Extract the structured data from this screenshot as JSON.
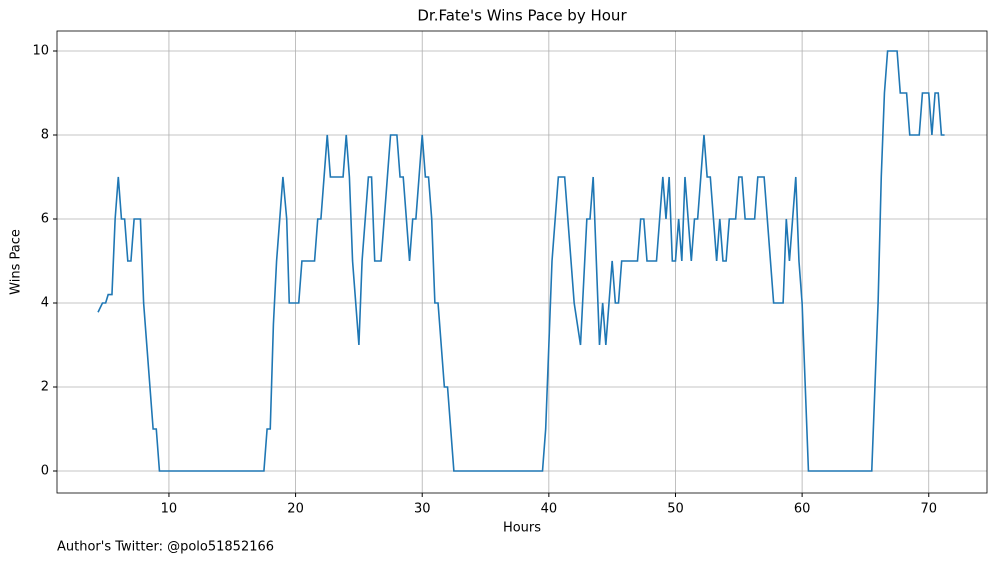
{
  "chart_data": {
    "type": "line",
    "title": "Dr.Fate's Wins Pace by Hour",
    "xlabel": "Hours",
    "ylabel": "Wins Pace",
    "note": "Author's Twitter: @polo51852166",
    "x": [
      4.4,
      4.75,
      5.0,
      5.2,
      5.5,
      5.75,
      6.0,
      6.25,
      6.5,
      6.75,
      7.0,
      7.25,
      7.75,
      8.0,
      8.25,
      8.5,
      8.75,
      9.0,
      9.25,
      17.5,
      17.75,
      18.0,
      18.25,
      18.5,
      19.0,
      19.3,
      19.5,
      20.25,
      20.5,
      21.5,
      21.75,
      22.0,
      22.5,
      22.75,
      23.75,
      24.0,
      24.25,
      24.5,
      25.0,
      25.25,
      25.5,
      25.75,
      26.0,
      26.25,
      26.75,
      27.0,
      27.25,
      27.5,
      28.0,
      28.25,
      28.5,
      29.0,
      29.25,
      29.5,
      29.75,
      30.0,
      30.25,
      30.5,
      30.75,
      31.0,
      31.25,
      31.75,
      32.0,
      32.25,
      32.5,
      39.5,
      39.75,
      40.0,
      40.25,
      40.75,
      41.25,
      41.5,
      41.75,
      42.0,
      42.5,
      42.75,
      43.0,
      43.25,
      43.5,
      43.75,
      44.0,
      44.25,
      44.5,
      44.75,
      45.0,
      45.25,
      45.5,
      45.75,
      47.0,
      47.25,
      47.5,
      47.75,
      48.5,
      48.75,
      49.0,
      49.25,
      49.5,
      49.75,
      50.0,
      50.25,
      50.5,
      50.75,
      51.0,
      51.25,
      51.5,
      51.75,
      52.0,
      52.25,
      52.5,
      52.75,
      53.0,
      53.25,
      53.5,
      53.75,
      54.0,
      54.25,
      54.75,
      55.0,
      55.25,
      55.5,
      56.25,
      56.5,
      57.0,
      57.25,
      57.5,
      57.75,
      58.5,
      58.75,
      59.0,
      59.25,
      59.5,
      59.75,
      60.0,
      60.25,
      60.5,
      65.5,
      65.75,
      66.0,
      66.25,
      66.5,
      66.75,
      67.5,
      67.75,
      68.25,
      68.5,
      69.25,
      69.5,
      70.0,
      70.25,
      70.5,
      70.75,
      71.0,
      71.25
    ],
    "series": [
      {
        "name": "Wins Pace",
        "color": "#1f77b4",
        "values": [
          3.78,
          4.0,
          4.0,
          4.2,
          4.2,
          6,
          7,
          6,
          6,
          5,
          5,
          6,
          6,
          4,
          3,
          2,
          1,
          1,
          0,
          0,
          1,
          1,
          3.5,
          5,
          7,
          6,
          4,
          4,
          5,
          5,
          6,
          6,
          8,
          7,
          7,
          8,
          7,
          5,
          3,
          5,
          6,
          7,
          7,
          5,
          5,
          6,
          7,
          8,
          8,
          7,
          7,
          5,
          6,
          6,
          7,
          8,
          7,
          7,
          6,
          4,
          4,
          2,
          2,
          1,
          0,
          0,
          1,
          3,
          5,
          7,
          7,
          6,
          5,
          4,
          3,
          4.5,
          6,
          6,
          7,
          5,
          3,
          4,
          3,
          4,
          5,
          4,
          4,
          5,
          5,
          6,
          6,
          5,
          5,
          6,
          7,
          6,
          7,
          5,
          5,
          6,
          5,
          7,
          6,
          5,
          6,
          6,
          7,
          8,
          7,
          7,
          6,
          5,
          6,
          5,
          5,
          6,
          6,
          7,
          7,
          6,
          6,
          7,
          7,
          6,
          5,
          4,
          4,
          6,
          5,
          6,
          7,
          5,
          4,
          2,
          0,
          0,
          2,
          4,
          7,
          9,
          10,
          10,
          9,
          9,
          8,
          8,
          9,
          9,
          8,
          9,
          9,
          8,
          8
        ]
      }
    ],
    "xlim": [
      1.16,
      74.6
    ],
    "ylim": [
      -0.524,
      10.476
    ],
    "xticks": [
      10,
      20,
      30,
      40,
      50,
      60,
      70
    ],
    "yticks": [
      0,
      2,
      4,
      6,
      8,
      10
    ],
    "grid": true
  }
}
